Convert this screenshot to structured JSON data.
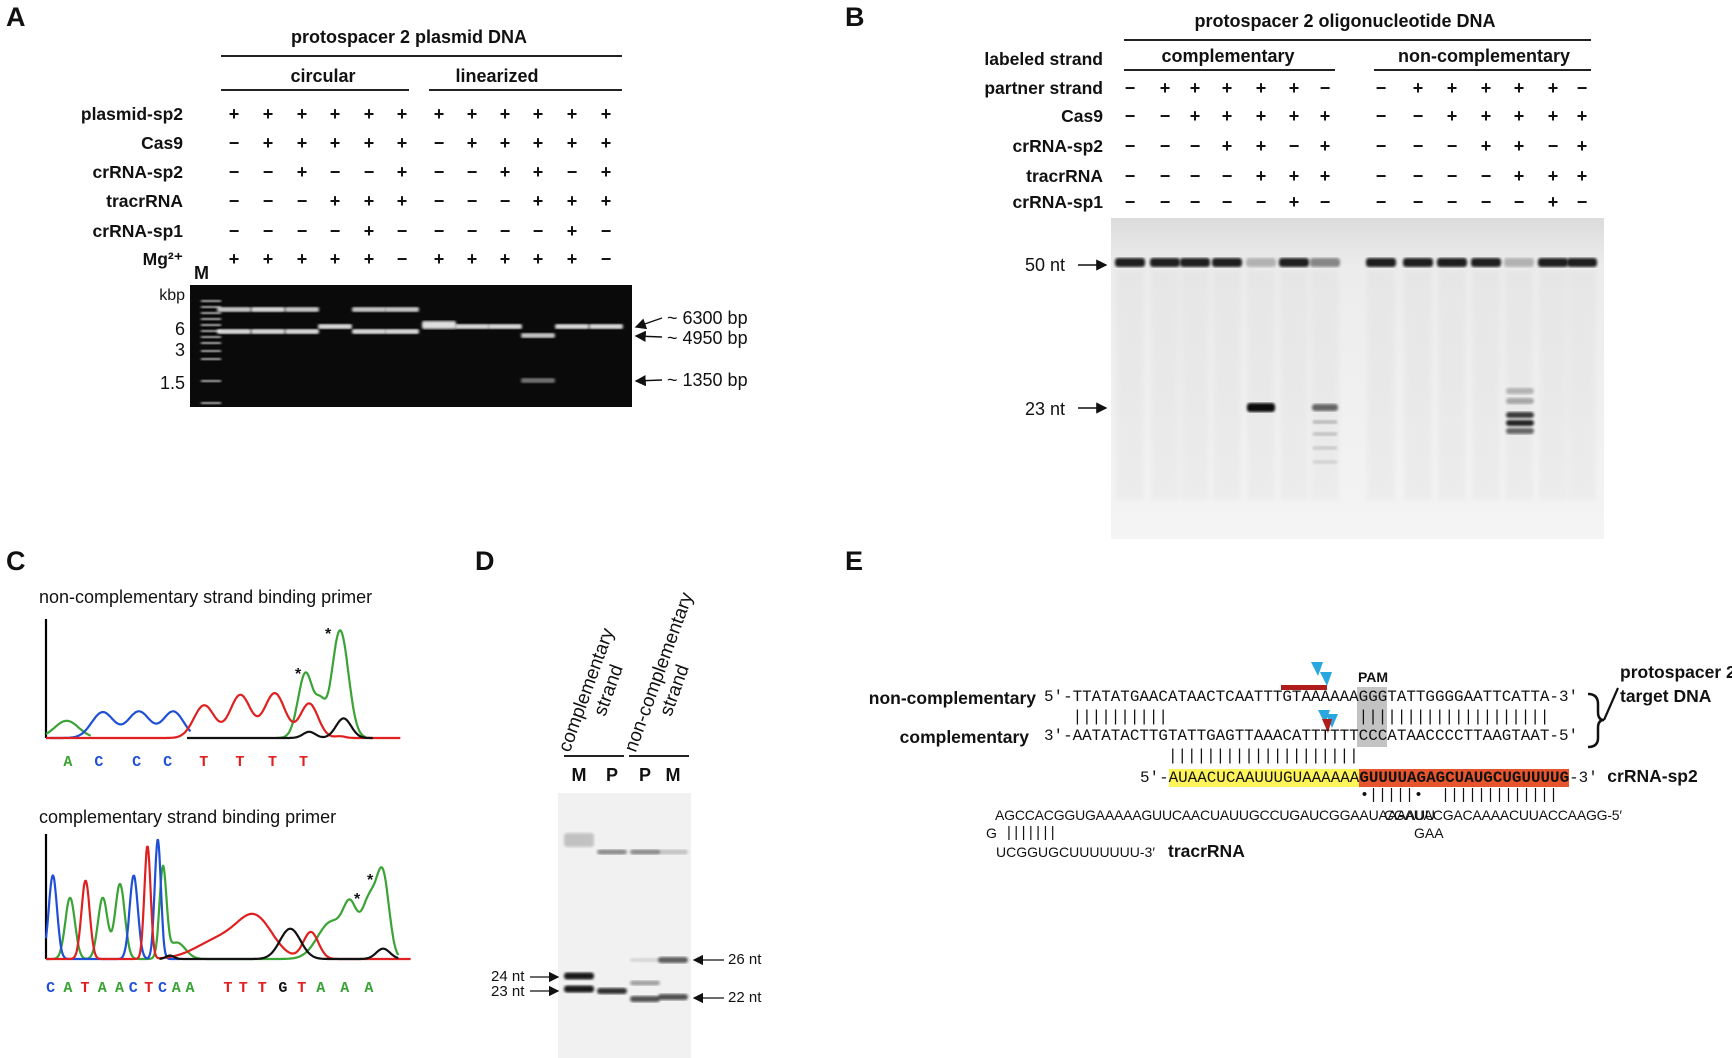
{
  "panels": {
    "a": "A",
    "b": "B",
    "c": "C",
    "d": "D",
    "e": "E"
  },
  "panel_a": {
    "title": "protospacer 2 plasmid DNA",
    "groups": [
      "circular",
      "linearized"
    ],
    "marker_label": "M",
    "rows": [
      {
        "label": "plasmid-sp2",
        "signs": [
          "+",
          "+",
          "+",
          "+",
          "+",
          "+",
          "+",
          "+",
          "+",
          "+",
          "+",
          "+"
        ]
      },
      {
        "label": "Cas9",
        "signs": [
          "−",
          "+",
          "+",
          "+",
          "+",
          "+",
          "−",
          "+",
          "+",
          "+",
          "+",
          "+"
        ]
      },
      {
        "label": "crRNA-sp2",
        "signs": [
          "−",
          "−",
          "+",
          "−",
          "−",
          "+",
          "−",
          "−",
          "+",
          "+",
          "−",
          "+"
        ]
      },
      {
        "label": "tracrRNA",
        "signs": [
          "−",
          "−",
          "−",
          "+",
          "+",
          "+",
          "−",
          "−",
          "−",
          "+",
          "+",
          "+"
        ]
      },
      {
        "label": "crRNA-sp1",
        "signs": [
          "−",
          "−",
          "−",
          "−",
          "+",
          "−",
          "−",
          "−",
          "−",
          "−",
          "+",
          "−"
        ]
      },
      {
        "label": "Mg²⁺",
        "signs": [
          "+",
          "+",
          "+",
          "+",
          "+",
          "−",
          "+",
          "+",
          "+",
          "+",
          "+",
          "−"
        ]
      }
    ],
    "kbp_labels": [
      "kbp",
      "6",
      "3",
      "1.5"
    ],
    "band_labels": [
      "~ 6300 bp",
      "~ 4950 bp",
      "~ 1350 bp"
    ]
  },
  "panel_b": {
    "title": "protospacer 2 oligonucleotide DNA",
    "labeled_strand_label": "labeled strand",
    "groups": [
      "complementary",
      "non-complementary"
    ],
    "rows": [
      {
        "label": "partner strand",
        "signs": [
          "−",
          "+",
          "+",
          "+",
          "+",
          "+",
          "−",
          "−",
          "+",
          "+",
          "+",
          "+",
          "+",
          "−"
        ]
      },
      {
        "label": "Cas9",
        "signs": [
          "−",
          "−",
          "+",
          "+",
          "+",
          "+",
          "+",
          "−",
          "−",
          "+",
          "+",
          "+",
          "+",
          "+"
        ]
      },
      {
        "label": "crRNA-sp2",
        "signs": [
          "−",
          "−",
          "−",
          "+",
          "+",
          "−",
          "+",
          "−",
          "−",
          "−",
          "+",
          "+",
          "−",
          "+"
        ]
      },
      {
        "label": "tracrRNA",
        "signs": [
          "−",
          "−",
          "−",
          "−",
          "+",
          "+",
          "+",
          "−",
          "−",
          "−",
          "−",
          "+",
          "+",
          "+"
        ]
      },
      {
        "label": "crRNA-sp1",
        "signs": [
          "−",
          "−",
          "−",
          "−",
          "−",
          "+",
          "−",
          "−",
          "−",
          "−",
          "−",
          "−",
          "+",
          "−"
        ]
      }
    ],
    "size_labels": [
      "50 nt",
      "23 nt"
    ]
  },
  "panel_c": {
    "top_title": "non-complementary strand binding primer",
    "top_bases": [
      "A",
      "C",
      "C",
      "C",
      "T",
      "T",
      "T",
      "T"
    ],
    "bottom_title": "complementary strand binding primer",
    "bottom_bases": [
      "C",
      "A",
      "T",
      "A",
      "A",
      "C",
      "T",
      "C",
      "A",
      "A",
      "T",
      "T",
      "T",
      "G",
      "T",
      "A",
      "A",
      "A"
    ],
    "star": "*",
    "base_colors": {
      "A": "#3aa335",
      "C": "#1f4fd6",
      "T": "#e02020",
      "G": "#111111"
    }
  },
  "panel_d": {
    "group_labels": [
      [
        "complementary",
        "strand"
      ],
      [
        "non-complementary",
        "strand"
      ]
    ],
    "lanes": [
      "M",
      "P",
      "P",
      "M"
    ],
    "size_labels_left": [
      "24 nt",
      "23 nt"
    ],
    "size_labels_right": [
      "26 nt",
      "22 nt"
    ]
  },
  "panel_e": {
    "pam_label": "PAM",
    "noncomp_label": "non-complementary",
    "comp_label": "complementary",
    "noncomp_seq": "5′-TTATATGAACATAACTCAATTTGTAAAAAAGGGTATTGGGGAATTCATTA-3′",
    "comp_seq": "3′-AATATACTTGTATTGAGTTAAACATTTTTTCCCATAACCCCTTAAGTAAT-5′",
    "pair_bars_dna": "   ||||||||||                    ||||||||||||||||||||",
    "pair_bars_crrna": "             ||||||||||||||||||||",
    "crrna_prefix": "5′-",
    "crrna_spacer": "AUAACUCAAUUUGUAAAAAA",
    "crrna_repeat": "GUUUUAGAGCUAUGCUGUUUUG",
    "crrna_suffix": "-3′",
    "crrna_label": "crRNA-sp2",
    "repeat_pairs": "•|||||•  |||||||||||||",
    "tracr_left": "AGCCACGGUGAAAAAGUUCAACUAUUGCCUGAUCGGAAUAAAAUU",
    "tracr_right": "CGAUACGACAAAACUUACCAAGG-5′",
    "tracr_loop_g": "G",
    "tracr_bars": "|||||||",
    "tracr_gaa": "GAA",
    "tracr_tail": "UCGGUGCUUUUUUU-3′",
    "tracr_label": "tracrRNA",
    "target_label": [
      "protospacer 2",
      "target DNA"
    ],
    "colors": {
      "spacer": "#fff45a",
      "repeat": "#e6552d",
      "cut_cas9": "#29a8e0",
      "cut_mark": "#b01c1c",
      "pam": "#b8b8b8"
    }
  }
}
